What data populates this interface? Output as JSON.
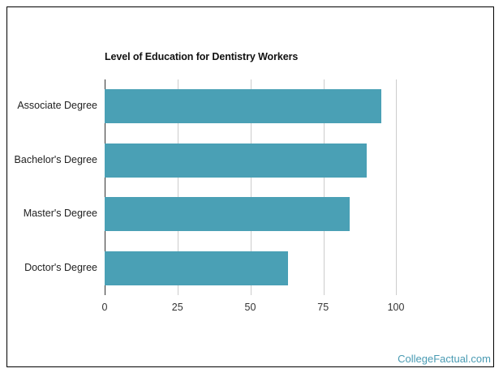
{
  "chart_data": {
    "type": "bar",
    "orientation": "horizontal",
    "title": "Level of Education for Dentistry Workers",
    "categories": [
      "Associate Degree",
      "Bachelor's Degree",
      "Master's Degree",
      "Doctor's Degree"
    ],
    "values": [
      95,
      90,
      84,
      63
    ],
    "xlabel": "",
    "ylabel": "",
    "xlim": [
      0,
      100
    ],
    "xticks": [
      "0",
      "25",
      "50",
      "75",
      "100"
    ],
    "grid": true,
    "legend": null,
    "bar_color": "#4aa0b5"
  },
  "watermark": "CollegeFactual.com"
}
